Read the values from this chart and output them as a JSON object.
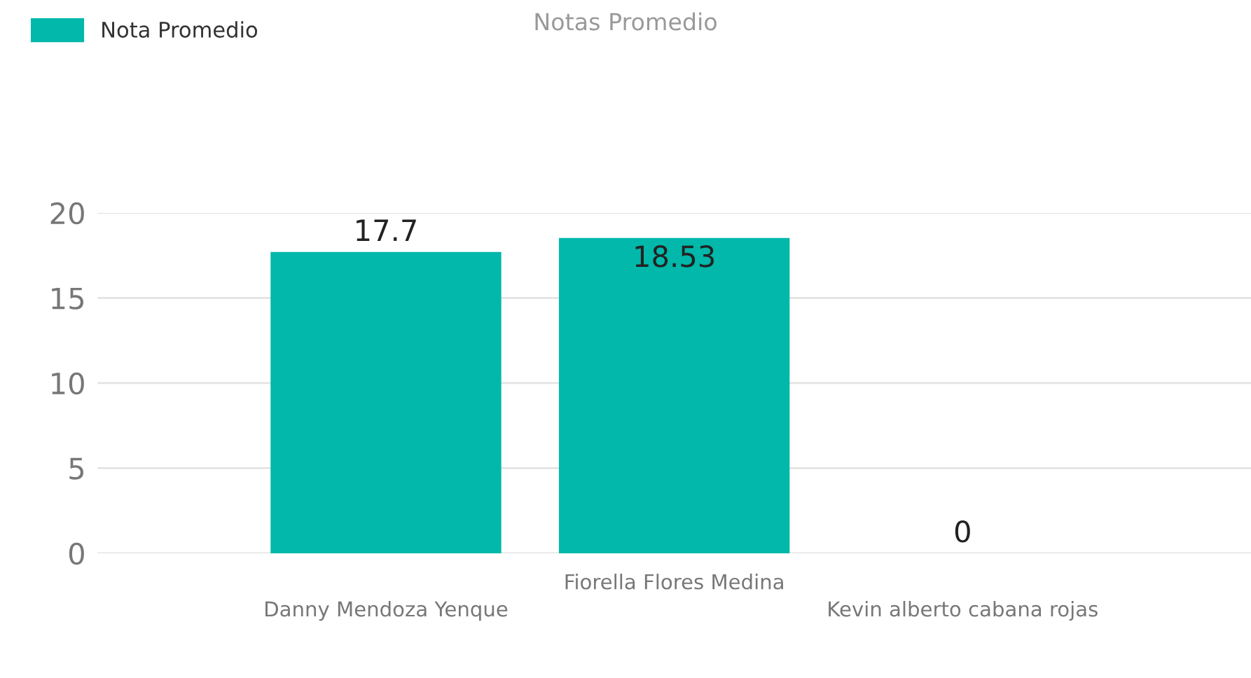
{
  "chart_data": {
    "type": "bar",
    "title": "Notas Promedio",
    "categories": [
      "Danny Mendoza Yenque",
      "Fiorella Flores Medina",
      "Kevin alberto cabana rojas"
    ],
    "series": [
      {
        "name": "Nota Promedio",
        "color": "#01b8aa",
        "values": [
          17.7,
          18.53,
          0
        ]
      }
    ],
    "ylim": [
      0,
      20
    ],
    "yticks": [
      0,
      5,
      10,
      15,
      20
    ],
    "grid": "y",
    "legend": "top left",
    "data_labels": true
  }
}
